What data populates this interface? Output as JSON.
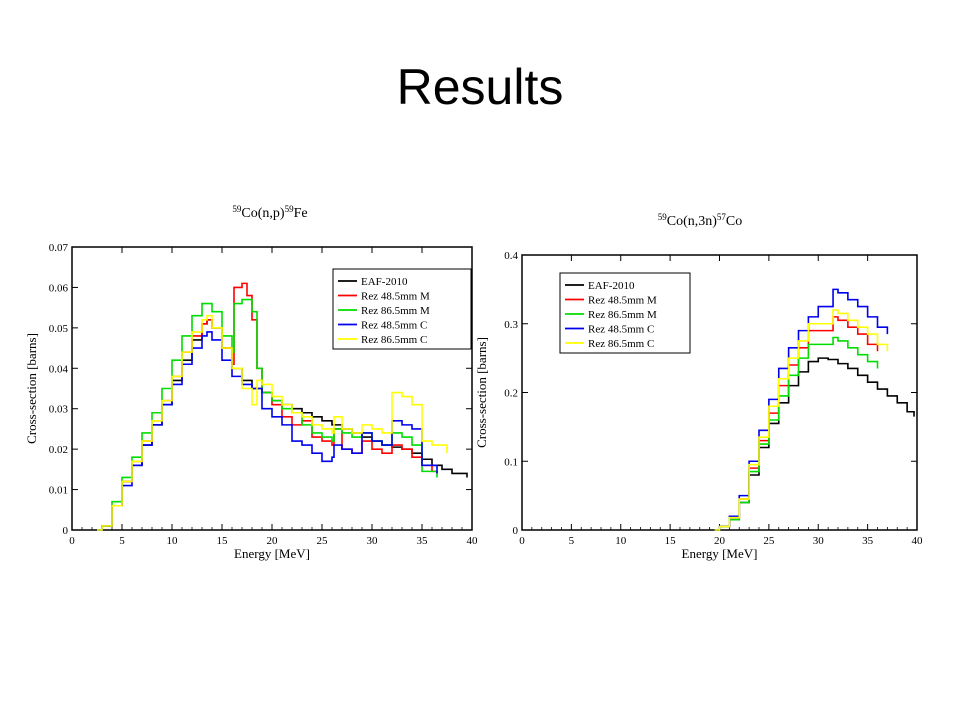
{
  "slide": {
    "title": "Results"
  },
  "chart_data": [
    {
      "type": "line",
      "title": {
        "mass1": "59",
        "target": "Co(n,p)",
        "mass2": "59",
        "product": "Fe"
      },
      "xlabel": "Energy [MeV]",
      "ylabel": "Cross-section [barns]",
      "xlim": [
        0,
        40
      ],
      "ylim": [
        0,
        0.07
      ],
      "xticks": [
        0,
        5,
        10,
        15,
        20,
        25,
        30,
        35,
        40
      ],
      "xtick_labels": [
        "0",
        "5",
        "10",
        "15",
        "20",
        "25",
        "30",
        "35",
        "40"
      ],
      "yticks": [
        0,
        0.01,
        0.02,
        0.03,
        0.04,
        0.05,
        0.06,
        0.07
      ],
      "ytick_labels": [
        "0",
        "0.01",
        "0.02",
        "0.03",
        "0.04",
        "0.05",
        "0.06",
        "0.07"
      ],
      "grid": false,
      "legend_position": "top-right",
      "series": [
        {
          "name": "EAF-2010",
          "color": "#000000",
          "x": [
            2.5,
            3,
            4,
            5,
            6,
            7,
            8,
            9,
            10,
            11,
            12,
            13,
            13.5,
            14,
            15,
            16,
            17,
            18,
            19,
            20,
            21,
            22,
            23,
            24,
            25,
            26,
            27,
            28,
            29,
            30,
            31,
            32,
            33,
            34,
            35,
            36,
            37,
            38,
            39.5
          ],
          "y": [
            0,
            0.001,
            0.006,
            0.012,
            0.016,
            0.021,
            0.026,
            0.031,
            0.037,
            0.042,
            0.047,
            0.051,
            0.052,
            0.05,
            0.045,
            0.04,
            0.037,
            0.035,
            0.034,
            0.032,
            0.031,
            0.03,
            0.029,
            0.028,
            0.027,
            0.026,
            0.025,
            0.024,
            0.023,
            0.022,
            0.021,
            0.0205,
            0.02,
            0.019,
            0.0175,
            0.016,
            0.015,
            0.014,
            0.013
          ]
        },
        {
          "name": "Rez 48.5mm M",
          "color": "#ff0000",
          "x": [
            2.5,
            3,
            4,
            5,
            6,
            7,
            8,
            9,
            10,
            11,
            12,
            13,
            13.5,
            14,
            15,
            16,
            16.2,
            17,
            17.5,
            18,
            18.5,
            19,
            20,
            21,
            22,
            23,
            24,
            25,
            26,
            26.2,
            27,
            28,
            29,
            30,
            31,
            32,
            33,
            34,
            35,
            36,
            36.5
          ],
          "y": [
            0,
            0.001,
            0.006,
            0.012,
            0.017,
            0.022,
            0.027,
            0.032,
            0.038,
            0.044,
            0.048,
            0.051,
            0.052,
            0.05,
            0.045,
            0.041,
            0.06,
            0.061,
            0.058,
            0.052,
            0.04,
            0.034,
            0.031,
            0.028,
            0.026,
            0.027,
            0.023,
            0.022,
            0.021,
            0.025,
            0.02,
            0.019,
            0.022,
            0.02,
            0.019,
            0.021,
            0.02,
            0.018,
            0.016,
            0.0145,
            0.014
          ]
        },
        {
          "name": "Rez 86.5mm M",
          "color": "#00dd00",
          "x": [
            2.5,
            3,
            4,
            5,
            6,
            7,
            8,
            9,
            10,
            11,
            12,
            13,
            13.5,
            14,
            15,
            16,
            16.2,
            17,
            18,
            18.5,
            19,
            20,
            21,
            22,
            23,
            24,
            25,
            26,
            26.2,
            27,
            28,
            29,
            30,
            31,
            32,
            33,
            34,
            35,
            36.5
          ],
          "y": [
            0,
            0.001,
            0.007,
            0.013,
            0.018,
            0.024,
            0.029,
            0.035,
            0.042,
            0.048,
            0.053,
            0.056,
            0.056,
            0.054,
            0.048,
            0.044,
            0.056,
            0.057,
            0.054,
            0.04,
            0.034,
            0.032,
            0.03,
            0.029,
            0.026,
            0.024,
            0.023,
            0.022,
            0.025,
            0.024,
            0.023,
            0.024,
            0.022,
            0.021,
            0.024,
            0.023,
            0.021,
            0.0145,
            0.013
          ]
        },
        {
          "name": "Rez 48.5mm C",
          "color": "#0000ee",
          "x": [
            2.5,
            3,
            4,
            5,
            6,
            7,
            8,
            9,
            10,
            11,
            12,
            13,
            13.5,
            14,
            15,
            16,
            17,
            18,
            19,
            20,
            21,
            22,
            23,
            24,
            25,
            26,
            26.2,
            27,
            28,
            29,
            30,
            31,
            32,
            33,
            34,
            35,
            36.5
          ],
          "y": [
            0,
            0.001,
            0.006,
            0.011,
            0.016,
            0.021,
            0.026,
            0.031,
            0.036,
            0.041,
            0.045,
            0.048,
            0.049,
            0.047,
            0.042,
            0.038,
            0.036,
            0.035,
            0.03,
            0.028,
            0.026,
            0.022,
            0.021,
            0.019,
            0.017,
            0.018,
            0.021,
            0.02,
            0.019,
            0.024,
            0.022,
            0.021,
            0.027,
            0.026,
            0.025,
            0.016,
            0.014
          ]
        },
        {
          "name": "Rez 86.5mm C",
          "color": "#ffff00",
          "x": [
            2.5,
            3,
            4,
            5,
            6,
            7,
            8,
            9,
            10,
            11,
            12,
            13,
            13.5,
            14,
            15,
            16,
            17,
            18,
            18.5,
            19,
            20,
            21,
            22,
            23,
            24,
            25,
            26,
            26.2,
            27,
            28,
            29,
            30,
            31,
            32,
            33,
            34,
            35,
            36,
            37.5
          ],
          "y": [
            0,
            0.001,
            0.006,
            0.012,
            0.017,
            0.022,
            0.027,
            0.032,
            0.038,
            0.044,
            0.049,
            0.052,
            0.053,
            0.05,
            0.045,
            0.04,
            0.035,
            0.031,
            0.037,
            0.036,
            0.033,
            0.031,
            0.029,
            0.028,
            0.026,
            0.025,
            0.024,
            0.028,
            0.025,
            0.024,
            0.026,
            0.025,
            0.024,
            0.034,
            0.033,
            0.031,
            0.022,
            0.021,
            0.019
          ]
        }
      ]
    },
    {
      "type": "line",
      "title": {
        "mass1": "59",
        "target": "Co(n,3n)",
        "mass2": "57",
        "product": "Co"
      },
      "xlabel": "Energy [MeV]",
      "ylabel": "Cross-section [barns]",
      "xlim": [
        0,
        40
      ],
      "ylim": [
        0,
        0.4
      ],
      "xticks": [
        0,
        5,
        10,
        15,
        20,
        25,
        30,
        35,
        40
      ],
      "xtick_labels": [
        "0",
        "5",
        "10",
        "15",
        "20",
        "25",
        "30",
        "35",
        "40"
      ],
      "yticks": [
        0,
        0.1,
        0.2,
        0.3,
        0.4
      ],
      "ytick_labels": [
        "0",
        "0.1",
        "0.2",
        "0.3",
        "0.4"
      ],
      "grid": false,
      "legend_position": "top-left",
      "series": [
        {
          "name": "EAF-2010",
          "color": "#000000",
          "x": [
            19.5,
            20,
            21,
            22,
            23,
            24,
            25,
            26,
            27,
            28,
            29,
            30,
            31,
            32,
            33,
            34,
            35,
            36,
            37,
            38,
            39,
            39.7
          ],
          "y": [
            0,
            0.005,
            0.015,
            0.04,
            0.08,
            0.12,
            0.155,
            0.185,
            0.21,
            0.23,
            0.245,
            0.25,
            0.248,
            0.242,
            0.235,
            0.225,
            0.215,
            0.205,
            0.195,
            0.185,
            0.172,
            0.165
          ]
        },
        {
          "name": "Rez 48.5mm M",
          "color": "#ff0000",
          "x": [
            19.5,
            20,
            21,
            22,
            23,
            24,
            25,
            26,
            27,
            28,
            29,
            30,
            31,
            31.5,
            32,
            33,
            34,
            35,
            36
          ],
          "y": [
            0,
            0.005,
            0.015,
            0.045,
            0.09,
            0.13,
            0.17,
            0.21,
            0.24,
            0.265,
            0.29,
            0.29,
            0.29,
            0.31,
            0.305,
            0.295,
            0.285,
            0.27,
            0.26
          ]
        },
        {
          "name": "Rez 86.5mm M",
          "color": "#00dd00",
          "x": [
            19.5,
            20,
            21,
            22,
            23,
            24,
            25,
            26,
            27,
            28,
            29,
            30,
            31,
            31.5,
            32,
            33,
            34,
            35,
            36
          ],
          "y": [
            0,
            0.005,
            0.015,
            0.04,
            0.085,
            0.125,
            0.16,
            0.195,
            0.225,
            0.25,
            0.27,
            0.27,
            0.27,
            0.28,
            0.275,
            0.265,
            0.255,
            0.245,
            0.235
          ]
        },
        {
          "name": "Rez 48.5mm C",
          "color": "#0000ee",
          "x": [
            19.5,
            20,
            21,
            22,
            23,
            24,
            25,
            26,
            27,
            28,
            29,
            30,
            31,
            31.5,
            32,
            33,
            34,
            35,
            36,
            37
          ],
          "y": [
            0,
            0.005,
            0.02,
            0.05,
            0.1,
            0.145,
            0.19,
            0.235,
            0.265,
            0.29,
            0.31,
            0.325,
            0.325,
            0.35,
            0.345,
            0.335,
            0.325,
            0.31,
            0.295,
            0.285
          ]
        },
        {
          "name": "Rez 86.5mm C",
          "color": "#ffff00",
          "x": [
            19.5,
            20,
            21,
            22,
            23,
            24,
            25,
            26,
            27,
            28,
            29,
            30,
            31,
            31.5,
            32,
            33,
            34,
            35,
            36,
            37
          ],
          "y": [
            0,
            0.005,
            0.018,
            0.045,
            0.095,
            0.135,
            0.18,
            0.22,
            0.25,
            0.275,
            0.3,
            0.3,
            0.3,
            0.32,
            0.315,
            0.305,
            0.295,
            0.285,
            0.27,
            0.26
          ]
        }
      ]
    }
  ]
}
